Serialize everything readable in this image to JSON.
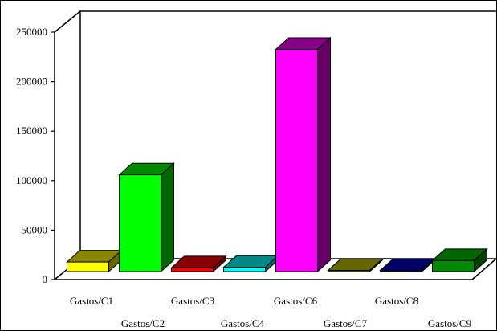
{
  "chart_data": {
    "type": "bar",
    "categories": [
      "Gastos/C1",
      "Gastos/C2",
      "Gastos/C3",
      "Gastos/C4",
      "Gastos/C6",
      "Gastos/C7",
      "Gastos/C8",
      "Gastos/C9"
    ],
    "values": [
      10000,
      101000,
      4000,
      4500,
      232000,
      0,
      0,
      11500
    ],
    "colors": [
      [
        "#ffff00",
        "#888800",
        "#666600"
      ],
      [
        "#00ff00",
        "#008800",
        "#006600"
      ],
      [
        "#ff0000",
        "#880000",
        "#660000"
      ],
      [
        "#00ffff",
        "#008888",
        "#006666"
      ],
      [
        "#ff00ff",
        "#880088",
        "#660066"
      ],
      [
        "#888800",
        "#666600",
        "#555500"
      ],
      [
        "#000088",
        "#000066",
        "#000044"
      ],
      [
        "#008800",
        "#006600",
        "#004400"
      ]
    ],
    "ylim": [
      0,
      250000
    ],
    "yticks": [
      "0",
      "50000",
      "100000",
      "150000",
      "200000",
      "250000"
    ],
    "grid": false,
    "style": "3d"
  }
}
